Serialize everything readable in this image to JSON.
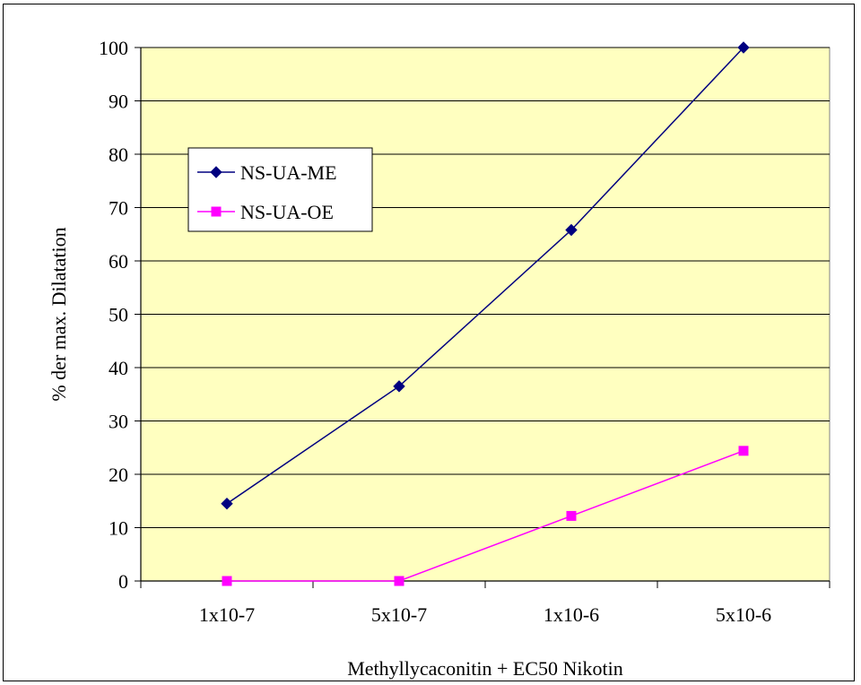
{
  "chart_data": {
    "type": "line",
    "title": "",
    "xlabel": "Methyllycaconitin + EC50 Nikotin",
    "ylabel": "% der max. Dilatation",
    "categories": [
      "1x10-7",
      "5x10-7",
      "1x10-6",
      "5x10-6"
    ],
    "ylim": [
      0,
      100
    ],
    "yticks": [
      "0",
      "10",
      "20",
      "30",
      "40",
      "50",
      "60",
      "70",
      "80",
      "90",
      "100"
    ],
    "grid": "horizontal",
    "legend": "upper-left inside",
    "plot_background": "#ffffc0",
    "series": [
      {
        "name": "NS-UA-ME",
        "color": "#000080",
        "marker": "diamond",
        "values": [
          14.5,
          36.5,
          65.8,
          100
        ]
      },
      {
        "name": "NS-UA-OE",
        "color": "#ff00ff",
        "marker": "square",
        "values": [
          0,
          0,
          12.2,
          24.4
        ]
      }
    ]
  }
}
